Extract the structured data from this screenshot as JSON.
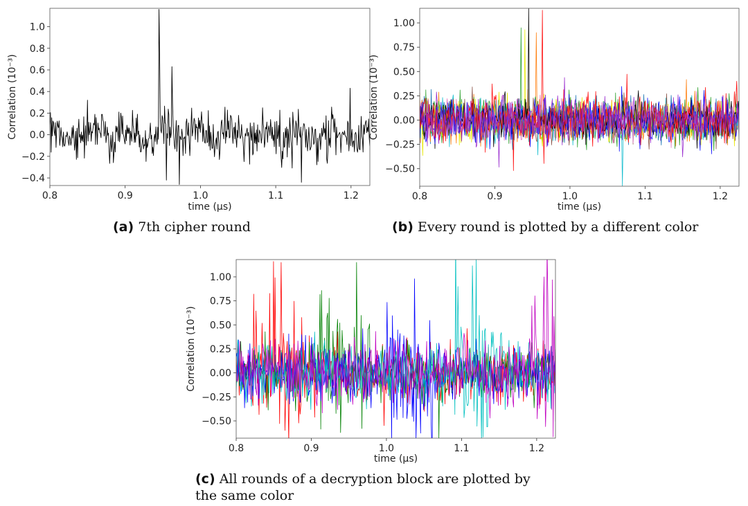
{
  "chart_data": [
    {
      "type": "line",
      "id": "a",
      "xlabel": "time (µs)",
      "ylabel": "Correlation (10⁻³)",
      "xlim": [
        0.8,
        1.225
      ],
      "ylim": [
        -0.47,
        1.17
      ],
      "xticks": [
        0.8,
        0.9,
        1.0,
        1.1,
        1.2
      ],
      "xtick_labels": [
        "0.8",
        "0.9",
        "1.0",
        "1.1",
        "1.2"
      ],
      "yticks": [
        -0.4,
        -0.2,
        0.0,
        0.2,
        0.4,
        0.6,
        0.8,
        1.0
      ],
      "ytick_labels": [
        "−0.4",
        "−0.2",
        "0.0",
        "0.2",
        "0.4",
        "0.6",
        "0.8",
        "1.0"
      ],
      "grid": false,
      "series": [
        {
          "color": "#000000",
          "noise_std": 0.1,
          "peaks": [
            {
              "x": 0.945,
              "y": 1.16
            },
            {
              "x": 0.946,
              "y": 0.75
            },
            {
              "x": 0.962,
              "y": 0.63
            },
            {
              "x": 0.955,
              "y": -0.42
            },
            {
              "x": 0.972,
              "y": -0.46
            },
            {
              "x": 1.134,
              "y": -0.44
            },
            {
              "x": 1.199,
              "y": 0.43
            },
            {
              "x": 0.85,
              "y": 0.32
            }
          ]
        }
      ],
      "caption_label": "(a)",
      "caption_text": "7th cipher round"
    },
    {
      "type": "line",
      "id": "b",
      "xlabel": "time (µs)",
      "ylabel": "Correlation (10⁻³)",
      "xlim": [
        0.8,
        1.225
      ],
      "ylim": [
        -0.68,
        1.15
      ],
      "xticks": [
        0.8,
        0.9,
        1.0,
        1.1,
        1.2
      ],
      "xtick_labels": [
        "0.8",
        "0.9",
        "1.0",
        "1.1",
        "1.2"
      ],
      "yticks": [
        -0.5,
        -0.25,
        0.0,
        0.25,
        0.5,
        0.75,
        1.0
      ],
      "ytick_labels": [
        "−0.50",
        "−0.25",
        "0.00",
        "0.25",
        "0.50",
        "0.75",
        "1.00"
      ],
      "grid": false,
      "series": [
        {
          "color": "#1f77b4",
          "noise_std": 0.11,
          "peaks": []
        },
        {
          "color": "#ff7f0e",
          "noise_std": 0.11,
          "peaks": [
            {
              "x": 0.955,
              "y": 0.9
            }
          ]
        },
        {
          "color": "#2ca02c",
          "noise_std": 0.12,
          "peaks": [
            {
              "x": 0.935,
              "y": 0.95
            }
          ]
        },
        {
          "color": "#e8e800",
          "noise_std": 0.1,
          "peaks": [
            {
              "x": 0.94,
              "y": 0.93
            }
          ]
        },
        {
          "color": "#17becf",
          "noise_std": 0.1,
          "peaks": [
            {
              "x": 1.07,
              "y": -0.68
            }
          ]
        },
        {
          "color": "#8c564b",
          "noise_std": 0.1,
          "peaks": []
        },
        {
          "color": "#e377c2",
          "noise_std": 0.1,
          "peaks": []
        },
        {
          "color": "#000000",
          "noise_std": 0.09,
          "peaks": [
            {
              "x": 0.945,
              "y": 1.15
            }
          ]
        },
        {
          "color": "#1515ff",
          "noise_std": 0.12,
          "peaks": []
        },
        {
          "color": "#ff1010",
          "noise_std": 0.13,
          "peaks": [
            {
              "x": 0.963,
              "y": 1.13
            },
            {
              "x": 0.925,
              "y": -0.52
            }
          ]
        },
        {
          "color": "#9b30d0",
          "noise_std": 0.12,
          "peaks": []
        }
      ],
      "caption_label": "(b)",
      "caption_text": "Every round is plotted by a different color"
    },
    {
      "type": "line",
      "id": "c",
      "xlabel": "time (µs)",
      "ylabel": "Correlation (10⁻³)",
      "xlim": [
        0.8,
        1.225
      ],
      "ylim": [
        -0.68,
        1.18
      ],
      "xticks": [
        0.8,
        0.9,
        1.0,
        1.1,
        1.2
      ],
      "xtick_labels": [
        "0.8",
        "0.9",
        "1.0",
        "1.1",
        "1.2"
      ],
      "yticks": [
        -0.5,
        -0.25,
        0.0,
        0.25,
        0.5,
        0.75,
        1.0
      ],
      "ytick_labels": [
        "−0.50",
        "−0.25",
        "0.00",
        "0.25",
        "0.50",
        "0.75",
        "1.00"
      ],
      "grid": false,
      "series": [
        {
          "color": "#ff0000",
          "noise_std": 0.15,
          "burst": [
            0.82,
            0.89
          ],
          "peaks": [
            {
              "x": 0.85,
              "y": 1.16
            },
            {
              "x": 0.86,
              "y": 1.15
            },
            {
              "x": 0.865,
              "y": -0.6
            }
          ]
        },
        {
          "color": "#008000",
          "noise_std": 0.15,
          "burst": [
            0.91,
            0.98
          ],
          "peaks": [
            {
              "x": 0.96,
              "y": 1.15
            },
            {
              "x": 0.967,
              "y": -0.58
            },
            {
              "x": 1.07,
              "y": -0.68
            }
          ]
        },
        {
          "color": "#0000ff",
          "noise_std": 0.16,
          "burst": [
            1.0,
            1.07
          ],
          "peaks": [
            {
              "x": 1.037,
              "y": 0.98
            },
            {
              "x": 1.06,
              "y": -0.55
            }
          ]
        },
        {
          "color": "#00c0c0",
          "noise_std": 0.16,
          "burst": [
            1.09,
            1.16
          ],
          "peaks": [
            {
              "x": 1.12,
              "y": 1.18
            },
            {
              "x": 1.095,
              "y": 0.9
            }
          ]
        },
        {
          "color": "#c000c0",
          "noise_std": 0.17,
          "burst": [
            1.19,
            1.225
          ],
          "peaks": [
            {
              "x": 1.21,
              "y": 1.0
            },
            {
              "x": 1.215,
              "y": 0.8
            }
          ]
        }
      ],
      "caption_label": "(c)",
      "caption_text_line1": "All rounds of a decryption block are plotted by",
      "caption_text_line2": "the same color"
    }
  ]
}
